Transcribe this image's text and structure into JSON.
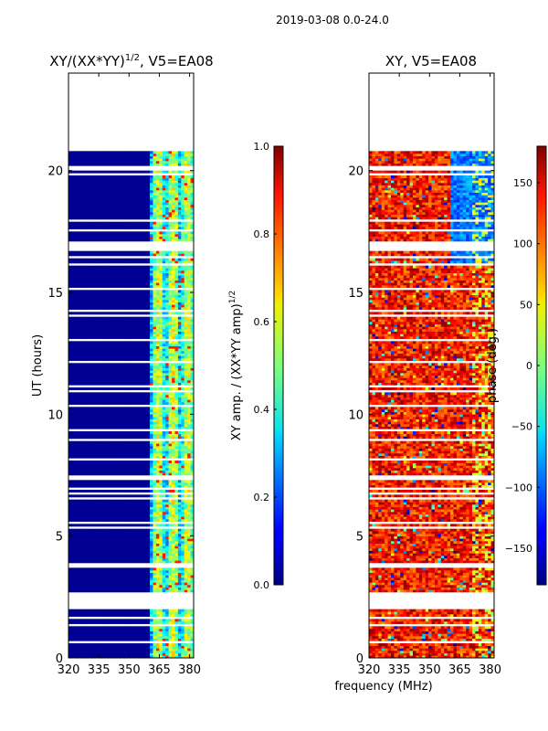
{
  "suptitle": "2019-03-08 0.0-24.0",
  "xlabel": "frequency (MHz)",
  "colors": {
    "masked_rows": "#ffffff",
    "frame": "#000000"
  },
  "chart_data": [
    {
      "type": "heatmap",
      "title_main": "XY/(XX*YY)",
      "title_sup": "1/2",
      "title_tail": ", V5=EA08",
      "ylabel": "UT (hours)",
      "xlim": [
        320,
        382
      ],
      "ylim": [
        0,
        24
      ],
      "xticks": [
        320,
        335,
        350,
        365,
        380
      ],
      "yticks": [
        0,
        5,
        10,
        15,
        20
      ],
      "colorbar": {
        "label_main": "XY amp. / (XX*YY amp)",
        "label_sup": "1/2",
        "range": [
          0.0,
          1.0
        ],
        "ticks": [
          "0.0",
          "0.2",
          "0.4",
          "0.6",
          "0.8",
          "1.0"
        ],
        "colormap": "jet"
      },
      "data_extent_hours": [
        0,
        20.8
      ],
      "high_amp_band_mhz": [
        360,
        381
      ],
      "background_value": 0.02
    },
    {
      "type": "heatmap",
      "title": "XY, V5=EA08",
      "xlim": [
        320,
        382
      ],
      "ylim": [
        0,
        24
      ],
      "xticks": [
        320,
        335,
        350,
        365,
        380
      ],
      "yticks": [
        0,
        5,
        10,
        15,
        20
      ],
      "colorbar": {
        "label": "phase (deg.)",
        "range": [
          -180,
          180
        ],
        "ticks": [
          "−150",
          "−100",
          "−50",
          "0",
          "50",
          "100",
          "150"
        ],
        "tick_values": [
          -150,
          -100,
          -50,
          0,
          50,
          100,
          150
        ],
        "colormap": "jet"
      },
      "data_extent_hours": [
        0,
        20.8
      ],
      "dominant_phase_deg": 130
    }
  ]
}
